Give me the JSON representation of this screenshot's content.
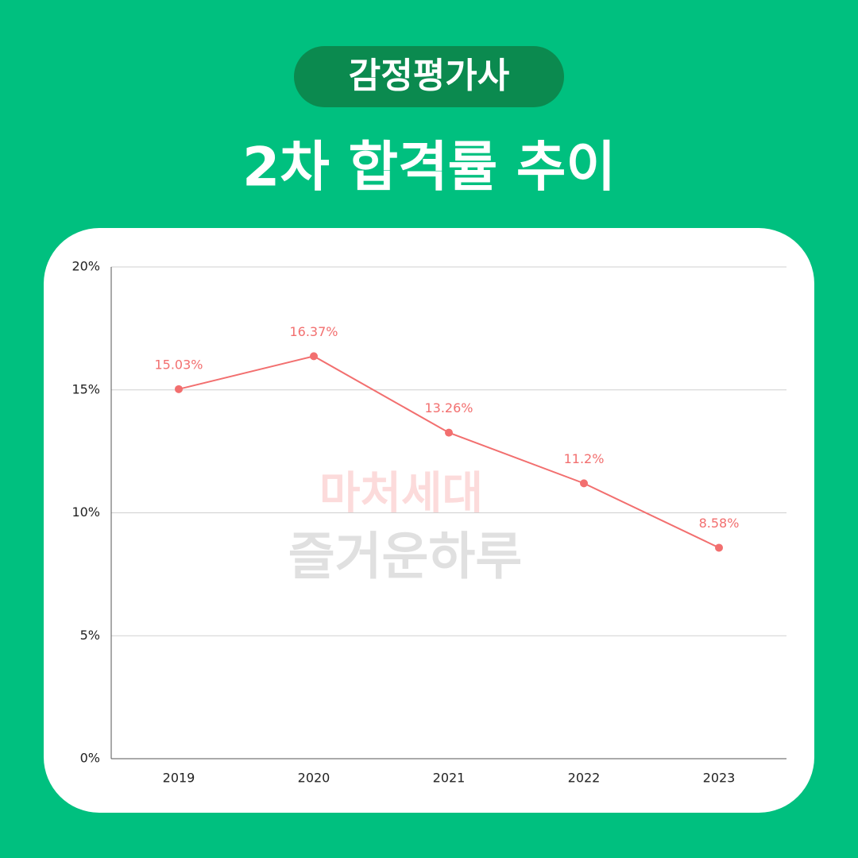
{
  "chart_data": {
    "type": "line",
    "subtitle": "감정평가사",
    "title": "2차 합격률 추이",
    "categories": [
      "2019",
      "2020",
      "2021",
      "2022",
      "2023"
    ],
    "values": [
      15.03,
      16.37,
      13.26,
      11.2,
      8.58
    ],
    "value_labels": [
      "15.03%",
      "16.37%",
      "13.26%",
      "11.2%",
      "8.58%"
    ],
    "color": "#f26f6f",
    "ylim": [
      0,
      20
    ],
    "yticks": [
      {
        "value": 0,
        "label": "0%"
      },
      {
        "value": 5,
        "label": "5%"
      },
      {
        "value": 10,
        "label": "10%"
      },
      {
        "value": 15,
        "label": "15%"
      },
      {
        "value": 20,
        "label": "20%"
      }
    ],
    "grid": true,
    "annotations": [
      "마처세대",
      "즐거운하루"
    ]
  }
}
